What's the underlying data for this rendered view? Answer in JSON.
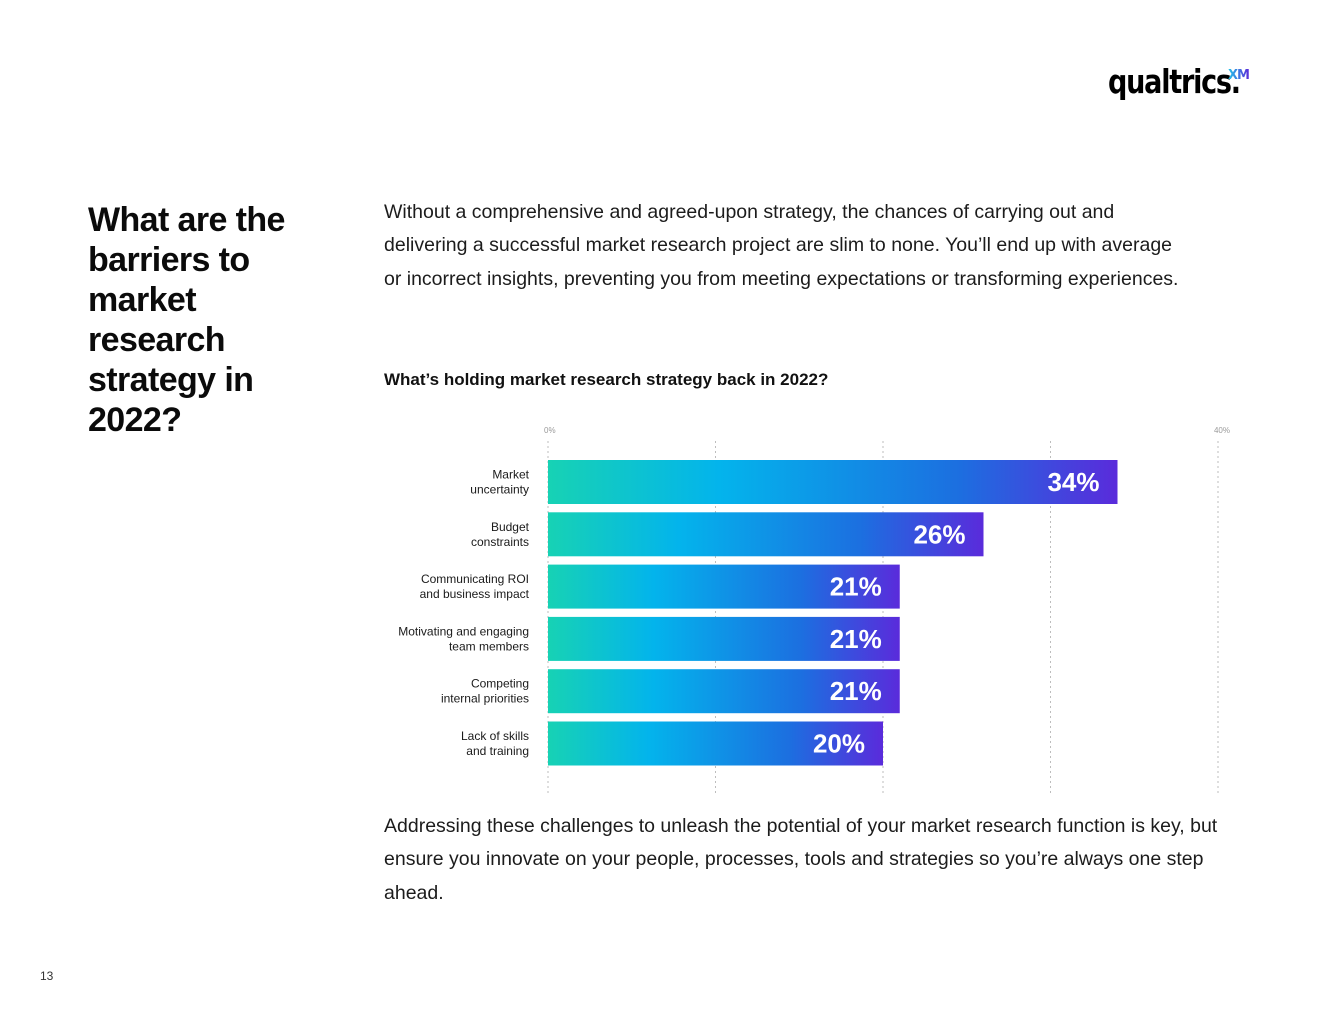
{
  "brand": {
    "wordmark": "qualtrics.",
    "superscript": "XM"
  },
  "headline": "What are the barriers to market research strategy in 2022?",
  "intro": "Without a comprehensive and agreed-upon strategy, the chances of carrying out and delivering a successful market research project are slim to none. You’ll end up with average or incorrect insights, preventing you from meeting expectations or transforming experiences.",
  "closing": "Addressing these challenges to unleash the potential of your market research function is key, but ensure you innovate on your people, processes, tools and strategies so you’re always one step ahead.",
  "page_number": "13",
  "colors": {
    "bar_gradient": [
      "#17d2b4",
      "#03b4ec",
      "#1c6fe0",
      "#5a2bdb"
    ],
    "grid": "#bdbdbd",
    "value_label": "#ffffff"
  },
  "chart_data": {
    "type": "bar",
    "orientation": "horizontal",
    "title": "What’s holding market research strategy back in 2022?",
    "axis_min_label": "0%",
    "axis_max_label": "40%",
    "xlim": [
      0,
      40
    ],
    "grid": true,
    "categories": [
      [
        "Market",
        "uncertainty"
      ],
      [
        "Budget",
        "constraints"
      ],
      [
        "Communicating ROI",
        "and business impact"
      ],
      [
        "Motivating and engaging",
        "team members"
      ],
      [
        "Competing",
        "internal priorities"
      ],
      [
        "Lack of skills",
        "and training"
      ]
    ],
    "values": [
      34,
      26,
      21,
      21,
      21,
      20
    ],
    "value_labels": [
      "34%",
      "26%",
      "21%",
      "21%",
      "21%",
      "20%"
    ]
  }
}
